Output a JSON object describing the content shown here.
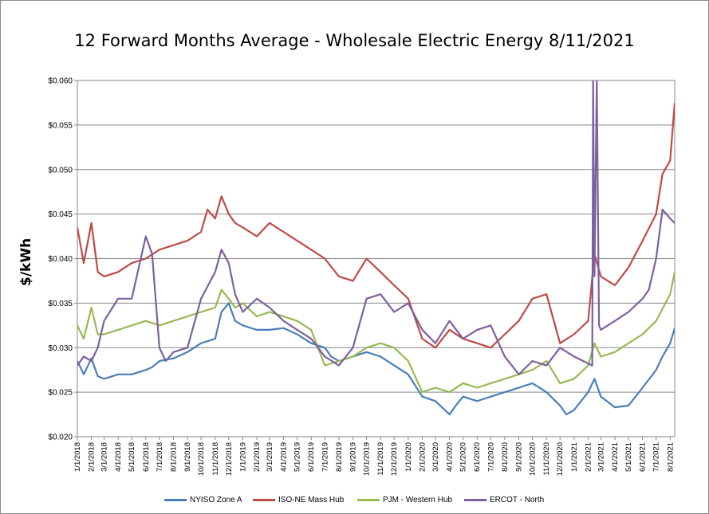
{
  "chart_data": {
    "type": "line",
    "title": "12 Forward Months Average - Wholesale Electric Energy 8/11/2021",
    "ylabel": "$/kWh",
    "xlabel": "",
    "ylim": [
      0.02,
      0.06
    ],
    "y_ticks": [
      "$0.020",
      "$0.025",
      "$0.030",
      "$0.035",
      "$0.040",
      "$0.045",
      "$0.050",
      "$0.055",
      "$0.060"
    ],
    "x_ticks": [
      "1/1/2018",
      "2/1/2018",
      "3/1/2018",
      "4/1/2018",
      "5/1/2018",
      "6/1/2018",
      "7/1/2018",
      "8/1/2018",
      "9/1/2018",
      "10/1/2018",
      "11/1/2018",
      "12/1/2018",
      "1/1/2019",
      "2/1/2019",
      "3/1/2019",
      "4/1/2019",
      "5/1/2019",
      "6/1/2019",
      "7/1/2019",
      "8/1/2019",
      "9/1/2019",
      "10/1/2019",
      "11/1/2019",
      "12/1/2019",
      "1/1/2020",
      "2/1/2020",
      "3/1/2020",
      "4/1/2020",
      "5/1/2020",
      "6/1/2020",
      "7/1/2020",
      "8/1/2020",
      "9/1/2020",
      "10/1/2020",
      "11/1/2020",
      "12/1/2020",
      "1/1/2021",
      "2/1/2021",
      "3/1/2021",
      "4/1/2021",
      "5/1/2021",
      "6/1/2021",
      "7/1/2021",
      "8/1/2021"
    ],
    "grid": true,
    "legend_position": "bottom",
    "series": [
      {
        "name": "NYISO Zone A",
        "color": "#4a7ebb",
        "x": [
          "1/1/2018",
          "1/15/2018",
          "2/1/2018",
          "2/15/2018",
          "3/1/2018",
          "4/1/2018",
          "5/1/2018",
          "6/1/2018",
          "6/15/2018",
          "7/1/2018",
          "8/1/2018",
          "9/1/2018",
          "10/1/2018",
          "11/1/2018",
          "11/15/2018",
          "12/1/2018",
          "12/15/2018",
          "1/1/2019",
          "2/1/2019",
          "3/1/2019",
          "4/1/2019",
          "5/1/2019",
          "6/1/2019",
          "7/1/2019",
          "7/15/2019",
          "8/1/2019",
          "9/1/2019",
          "10/1/2019",
          "11/1/2019",
          "12/1/2019",
          "1/1/2020",
          "2/1/2020",
          "3/1/2020",
          "4/1/2020",
          "4/15/2020",
          "5/1/2020",
          "6/1/2020",
          "7/1/2020",
          "8/1/2020",
          "9/1/2020",
          "10/1/2020",
          "11/1/2020",
          "12/1/2020",
          "12/15/2020",
          "1/1/2021",
          "2/1/2021",
          "2/15/2021",
          "3/1/2021",
          "4/1/2021",
          "5/1/2021",
          "6/1/2021",
          "7/1/2021",
          "7/15/2021",
          "8/1/2021",
          "8/11/2021"
        ],
        "y": [
          0.0285,
          0.027,
          0.0288,
          0.0268,
          0.0265,
          0.027,
          0.027,
          0.0275,
          0.0278,
          0.0285,
          0.0288,
          0.0295,
          0.0305,
          0.031,
          0.034,
          0.035,
          0.033,
          0.0325,
          0.032,
          0.032,
          0.0322,
          0.0315,
          0.0305,
          0.03,
          0.029,
          0.0285,
          0.029,
          0.0295,
          0.029,
          0.028,
          0.027,
          0.0245,
          0.024,
          0.0225,
          0.0235,
          0.0245,
          0.024,
          0.0245,
          0.025,
          0.0255,
          0.026,
          0.025,
          0.0235,
          0.0225,
          0.023,
          0.025,
          0.0265,
          0.0245,
          0.0233,
          0.0235,
          0.0255,
          0.0275,
          0.029,
          0.0305,
          0.0322
        ]
      },
      {
        "name": "ISO-NE Mass Hub",
        "color": "#be4b48",
        "x": [
          "1/1/2018",
          "1/15/2018",
          "2/1/2018",
          "2/15/2018",
          "3/1/2018",
          "4/1/2018",
          "5/1/2018",
          "6/1/2018",
          "7/1/2018",
          "8/1/2018",
          "9/1/2018",
          "10/1/2018",
          "10/15/2018",
          "11/1/2018",
          "11/15/2018",
          "12/1/2018",
          "12/15/2018",
          "1/1/2019",
          "2/1/2019",
          "3/1/2019",
          "4/1/2019",
          "5/1/2019",
          "6/1/2019",
          "7/1/2019",
          "8/1/2019",
          "9/1/2019",
          "10/1/2019",
          "11/1/2019",
          "12/1/2019",
          "1/1/2020",
          "2/1/2020",
          "3/1/2020",
          "4/1/2020",
          "5/1/2020",
          "6/1/2020",
          "7/1/2020",
          "8/1/2020",
          "9/1/2020",
          "10/1/2020",
          "11/1/2020",
          "12/1/2020",
          "1/1/2021",
          "2/1/2021",
          "2/15/2021",
          "3/1/2021",
          "4/1/2021",
          "5/1/2021",
          "6/1/2021",
          "7/1/2021",
          "7/15/2021",
          "8/1/2021",
          "8/11/2021"
        ],
        "y": [
          0.0435,
          0.0395,
          0.044,
          0.0385,
          0.038,
          0.0385,
          0.0395,
          0.04,
          0.041,
          0.0415,
          0.042,
          0.043,
          0.0455,
          0.0445,
          0.047,
          0.045,
          0.044,
          0.0435,
          0.0425,
          0.044,
          0.043,
          0.042,
          0.041,
          0.04,
          0.038,
          0.0375,
          0.04,
          0.0385,
          0.037,
          0.0355,
          0.031,
          0.03,
          0.032,
          0.031,
          0.0305,
          0.03,
          0.0315,
          0.033,
          0.0355,
          0.036,
          0.0305,
          0.0315,
          0.033,
          0.0405,
          0.038,
          0.037,
          0.039,
          0.042,
          0.045,
          0.0495,
          0.051,
          0.0575
        ]
      },
      {
        "name": "PJM - Western Hub",
        "color": "#98b954",
        "x": [
          "1/1/2018",
          "1/15/2018",
          "2/1/2018",
          "2/15/2018",
          "3/1/2018",
          "4/1/2018",
          "5/1/2018",
          "6/1/2018",
          "7/1/2018",
          "8/1/2018",
          "9/1/2018",
          "10/1/2018",
          "11/1/2018",
          "11/15/2018",
          "12/1/2018",
          "12/15/2018",
          "1/1/2019",
          "2/1/2019",
          "3/1/2019",
          "4/1/2019",
          "5/1/2019",
          "6/1/2019",
          "7/1/2019",
          "8/1/2019",
          "9/1/2019",
          "10/1/2019",
          "11/1/2019",
          "12/1/2019",
          "1/1/2020",
          "2/1/2020",
          "3/1/2020",
          "4/1/2020",
          "5/1/2020",
          "6/1/2020",
          "7/1/2020",
          "8/1/2020",
          "9/1/2020",
          "10/1/2020",
          "11/1/2020",
          "12/1/2020",
          "1/1/2021",
          "2/1/2021",
          "2/15/2021",
          "3/1/2021",
          "4/1/2021",
          "5/1/2021",
          "6/1/2021",
          "7/1/2021",
          "8/1/2021",
          "8/11/2021"
        ],
        "y": [
          0.0325,
          0.031,
          0.0345,
          0.0315,
          0.0315,
          0.032,
          0.0325,
          0.033,
          0.0325,
          0.033,
          0.0335,
          0.034,
          0.0345,
          0.0365,
          0.0355,
          0.0345,
          0.035,
          0.0335,
          0.034,
          0.0335,
          0.033,
          0.032,
          0.028,
          0.0285,
          0.029,
          0.03,
          0.0305,
          0.03,
          0.0285,
          0.025,
          0.0255,
          0.025,
          0.026,
          0.0255,
          0.026,
          0.0265,
          0.027,
          0.0275,
          0.0285,
          0.026,
          0.0265,
          0.028,
          0.0305,
          0.029,
          0.0295,
          0.0305,
          0.0315,
          0.033,
          0.036,
          0.0385
        ]
      },
      {
        "name": "ERCOT - North",
        "color": "#7d60a0",
        "x": [
          "1/1/2018",
          "1/15/2018",
          "2/1/2018",
          "2/15/2018",
          "3/1/2018",
          "4/1/2018",
          "5/1/2018",
          "6/1/2018",
          "6/15/2018",
          "7/1/2018",
          "7/15/2018",
          "8/1/2018",
          "9/1/2018",
          "10/1/2018",
          "11/1/2018",
          "11/15/2018",
          "12/1/2018",
          "12/15/2018",
          "1/1/2019",
          "2/1/2019",
          "3/1/2019",
          "4/1/2019",
          "5/1/2019",
          "6/1/2019",
          "7/1/2019",
          "8/1/2019",
          "9/1/2019",
          "10/1/2019",
          "11/1/2019",
          "12/1/2019",
          "1/1/2020",
          "2/1/2020",
          "3/1/2020",
          "4/1/2020",
          "5/1/2020",
          "6/1/2020",
          "7/1/2020",
          "8/1/2020",
          "9/1/2020",
          "10/1/2020",
          "11/1/2020",
          "12/1/2020",
          "1/1/2021",
          "2/10/2021",
          "2/12/2021",
          "2/15/2021",
          "2/20/2021",
          "2/25/2021",
          "3/1/2021",
          "4/1/2021",
          "5/1/2021",
          "6/1/2021",
          "6/15/2021",
          "7/1/2021",
          "7/15/2021",
          "8/1/2021",
          "8/11/2021"
        ],
        "y": [
          0.028,
          0.029,
          0.0285,
          0.03,
          0.033,
          0.0355,
          0.0355,
          0.0425,
          0.0405,
          0.03,
          0.0285,
          0.0295,
          0.03,
          0.0355,
          0.0385,
          0.041,
          0.0395,
          0.036,
          0.034,
          0.0355,
          0.0345,
          0.033,
          0.032,
          0.031,
          0.029,
          0.028,
          0.03,
          0.0355,
          0.036,
          0.034,
          0.035,
          0.032,
          0.0305,
          0.033,
          0.031,
          0.032,
          0.0325,
          0.029,
          0.027,
          0.0285,
          0.028,
          0.03,
          0.029,
          0.028,
          0.06,
          0.038,
          0.06,
          0.0325,
          0.032,
          0.033,
          0.034,
          0.0355,
          0.0365,
          0.04,
          0.0455,
          0.0445,
          0.044
        ]
      }
    ]
  }
}
